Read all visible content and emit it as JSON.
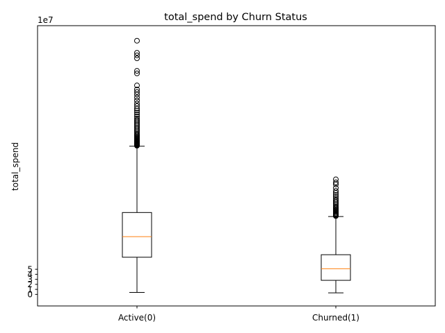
{
  "chart_data": {
    "type": "box",
    "title": "total_spend by Churn Status",
    "xlabel": "",
    "ylabel": "total_spend",
    "y_scale_label": "1e7",
    "ylim": [
      -2.3,
      53.5
    ],
    "y_ticks": [
      0,
      1,
      2,
      3,
      4,
      5
    ],
    "y_unit_multiplier": 10000000,
    "categories": [
      "Active(0)",
      "Churned(1)"
    ],
    "boxes": [
      {
        "category": "Active(0)",
        "whisker_low": 0.4,
        "q1": 7.4,
        "median": 11.5,
        "q3": 16.3,
        "whisker_high": 29.5,
        "outliers": [
          29.6,
          29.7,
          29.8,
          29.9,
          30.0,
          30.1,
          30.2,
          30.3,
          30.4,
          30.5,
          30.6,
          30.8,
          31.0,
          31.2,
          31.4,
          31.6,
          31.8,
          32.0,
          32.3,
          32.6,
          32.9,
          33.2,
          33.5,
          33.8,
          34.1,
          34.4,
          34.7,
          35.0,
          35.4,
          35.8,
          36.2,
          36.6,
          37.0,
          37.5,
          38.0,
          38.6,
          39.2,
          39.8,
          40.3,
          40.8,
          41.6,
          44.0,
          44.5,
          47.0,
          47.6,
          48.1,
          50.5
        ]
      },
      {
        "category": "Churned(1)",
        "whisker_low": 0.3,
        "q1": 2.8,
        "median": 5.1,
        "q3": 7.9,
        "whisker_high": 15.5,
        "outliers": [
          15.6,
          15.7,
          15.8,
          15.9,
          16.0,
          16.1,
          16.3,
          16.5,
          16.7,
          16.9,
          17.1,
          17.3,
          17.5,
          17.8,
          18.1,
          18.4,
          18.7,
          19.0,
          19.4,
          19.8,
          20.2,
          20.6,
          21.2,
          21.9,
          22.3,
          22.9
        ]
      }
    ],
    "colors": {
      "box_edge": "#000000",
      "median": "#ff7f0e",
      "outlier_edge": "#000000",
      "axes": "#000000",
      "background": "#ffffff"
    },
    "grid": false,
    "legend": "none"
  }
}
